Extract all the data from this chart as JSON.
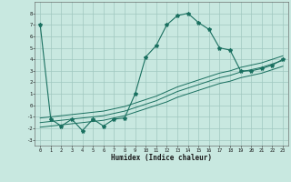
{
  "x_data": [
    0,
    1,
    2,
    3,
    4,
    5,
    6,
    7,
    8,
    9,
    10,
    11,
    12,
    13,
    14,
    15,
    16,
    17,
    18,
    19,
    20,
    21,
    22,
    23
  ],
  "y_main": [
    7.0,
    -1.2,
    -1.8,
    -1.2,
    -2.2,
    -1.2,
    -1.8,
    -1.2,
    -1.1,
    1.0,
    4.2,
    5.2,
    7.0,
    7.8,
    8.0,
    7.2,
    6.6,
    5.0,
    4.8,
    3.0,
    3.0,
    3.2,
    3.5,
    4.0
  ],
  "y_line1": [
    -1.5,
    -1.4,
    -1.3,
    -1.2,
    -1.1,
    -1.0,
    -0.9,
    -0.7,
    -0.5,
    -0.2,
    0.1,
    0.4,
    0.8,
    1.2,
    1.5,
    1.8,
    2.1,
    2.4,
    2.6,
    2.9,
    3.1,
    3.3,
    3.6,
    3.9
  ],
  "y_line2": [
    -1.9,
    -1.8,
    -1.7,
    -1.6,
    -1.5,
    -1.4,
    -1.3,
    -1.1,
    -0.9,
    -0.6,
    -0.3,
    0.0,
    0.3,
    0.7,
    1.0,
    1.3,
    1.6,
    1.9,
    2.1,
    2.4,
    2.6,
    2.8,
    3.1,
    3.4
  ],
  "y_line3": [
    -1.1,
    -1.0,
    -0.9,
    -0.8,
    -0.7,
    -0.6,
    -0.5,
    -0.3,
    -0.1,
    0.2,
    0.5,
    0.8,
    1.2,
    1.6,
    1.9,
    2.2,
    2.5,
    2.8,
    3.0,
    3.3,
    3.5,
    3.7,
    4.0,
    4.3
  ],
  "main_color": "#1a7060",
  "bg_color": "#c8e8e0",
  "grid_color": "#a0c8c0",
  "xlabel": "Humidex (Indice chaleur)",
  "ylim": [
    -3.5,
    9.0
  ],
  "xlim": [
    -0.5,
    23.5
  ],
  "yticks": [
    -3,
    -2,
    -1,
    0,
    1,
    2,
    3,
    4,
    5,
    6,
    7,
    8
  ],
  "xticks": [
    0,
    1,
    2,
    3,
    4,
    5,
    6,
    7,
    8,
    9,
    10,
    11,
    12,
    13,
    14,
    15,
    16,
    17,
    18,
    19,
    20,
    21,
    22,
    23
  ],
  "marker_style": "*",
  "marker_size": 3.0,
  "linewidth_main": 0.8,
  "linewidth_trend": 0.7
}
